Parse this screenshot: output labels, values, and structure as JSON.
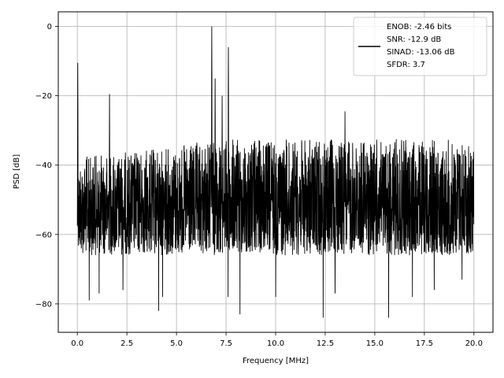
{
  "chart_data": {
    "type": "line",
    "title": "",
    "xlabel": "Frequency [MHz]",
    "ylabel": "PSD [dB]",
    "xlim": [
      -0.96,
      20.96
    ],
    "ylim": [
      -88.2,
      4.2
    ],
    "xticks": [
      0.0,
      2.5,
      5.0,
      7.5,
      10.0,
      12.5,
      15.0,
      17.5,
      20.0
    ],
    "xtick_labels": [
      "0.0",
      "2.5",
      "5.0",
      "7.5",
      "10.0",
      "12.5",
      "15.0",
      "17.5",
      "20.0"
    ],
    "yticks": [
      0,
      -20,
      -40,
      -60,
      -80
    ],
    "ytick_labels": [
      "0",
      "−20",
      "−40",
      "−60",
      "−80"
    ],
    "grid": true,
    "legend_position": "top-right",
    "legend_lines": [
      "ENOB: -2.46 bits",
      "SNR: -12.9 dB",
      "SINAD: -13.06 dB",
      "SFDR: 3.7"
    ],
    "series": [
      {
        "color": "#000000",
        "noise_floor": {
          "x_range": [
            0.0,
            20.0
          ],
          "upper_envelope": [
            [
              0.0,
              -36
            ],
            [
              5.0,
              -33
            ],
            [
              7.0,
              -31
            ],
            [
              20.0,
              -31
            ]
          ],
          "lower_envelope": [
            [
              0.0,
              -66
            ],
            [
              20.0,
              -66
            ]
          ],
          "deep_dips": [
            [
              0.6,
              -79
            ],
            [
              1.1,
              -77
            ],
            [
              2.3,
              -76
            ],
            [
              4.1,
              -82
            ],
            [
              4.3,
              -78
            ],
            [
              7.6,
              -78
            ],
            [
              8.2,
              -83
            ],
            [
              10.0,
              -78
            ],
            [
              12.4,
              -84
            ],
            [
              13.0,
              -77
            ],
            [
              15.7,
              -84
            ],
            [
              16.9,
              -78
            ],
            [
              18.0,
              -76
            ],
            [
              19.4,
              -73
            ]
          ]
        },
        "peaks": [
          [
            0.02,
            -10.5
          ],
          [
            1.62,
            -19.5
          ],
          [
            6.78,
            0.0
          ],
          [
            6.95,
            -15.0
          ],
          [
            7.3,
            -20.0
          ],
          [
            7.62,
            -6.0
          ],
          [
            13.5,
            -24.5
          ]
        ]
      }
    ]
  }
}
